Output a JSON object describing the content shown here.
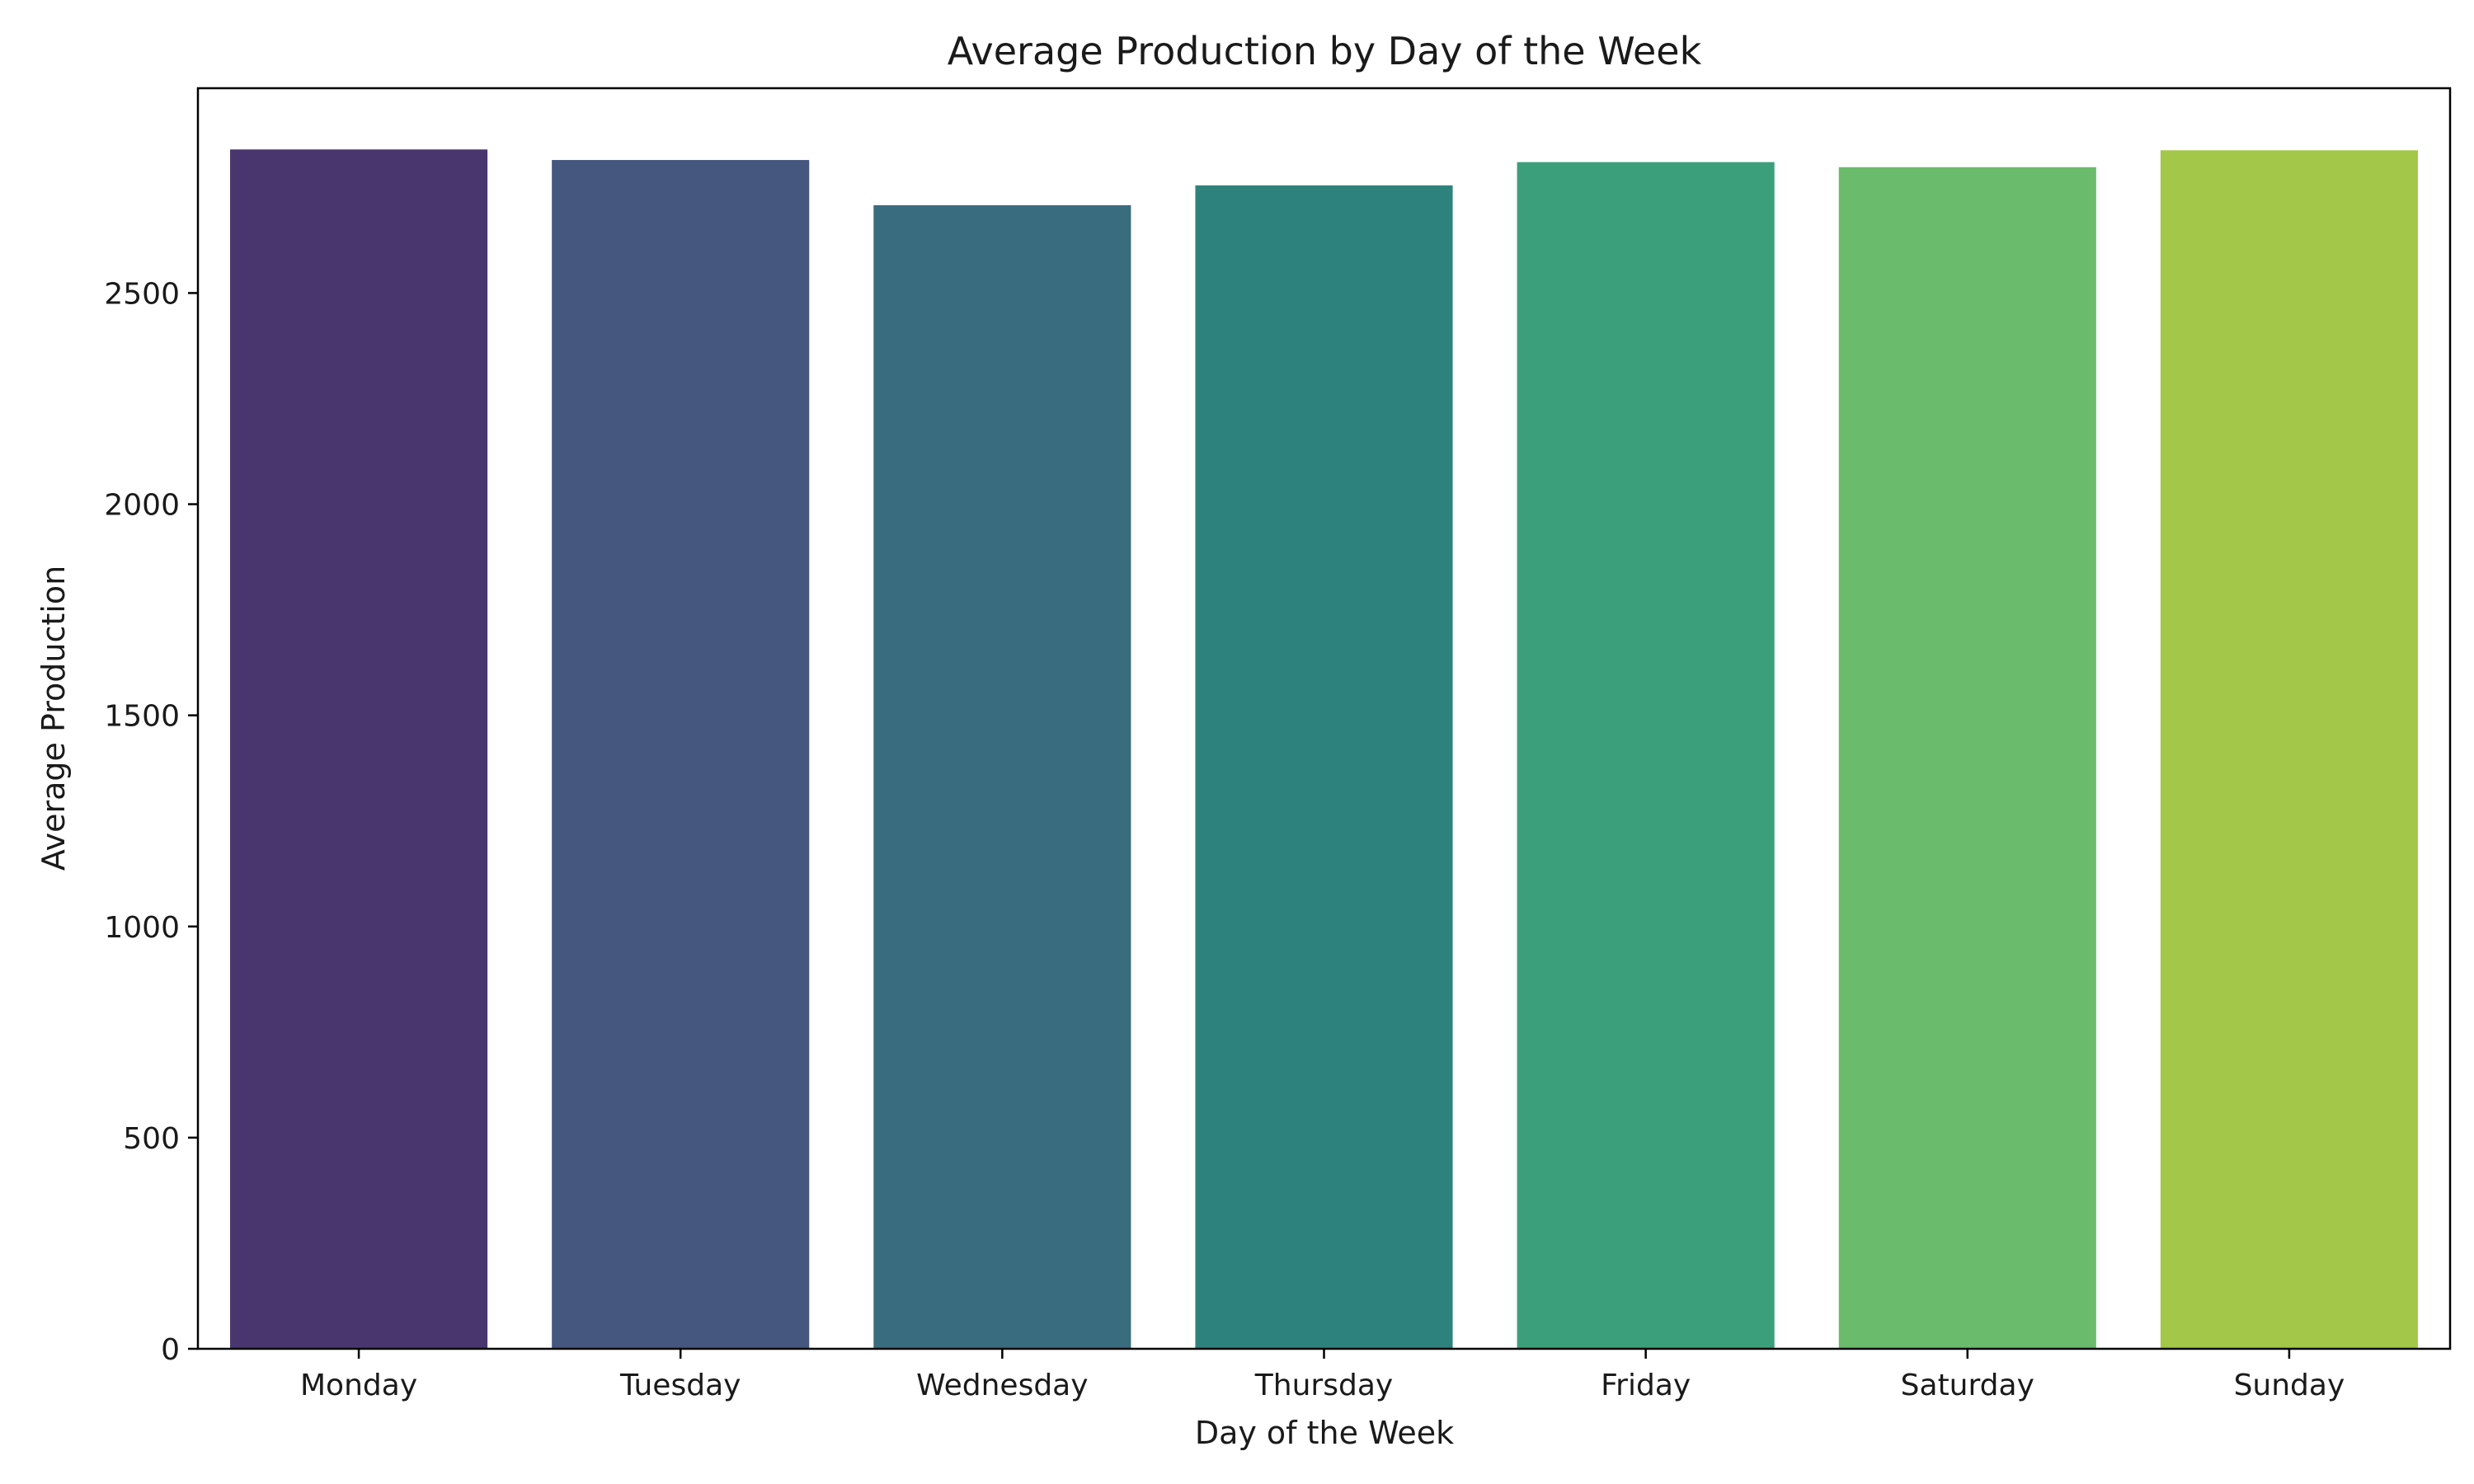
{
  "chart_data": {
    "type": "bar",
    "title": "Average Production by Day of the Week",
    "xlabel": "Day of the Week",
    "ylabel": "Average Production",
    "categories": [
      "Monday",
      "Tuesday",
      "Wednesday",
      "Thursday",
      "Friday",
      "Saturday",
      "Sunday"
    ],
    "values": [
      2840,
      2815,
      2708,
      2755,
      2810,
      2798,
      2838
    ],
    "colors": [
      "#4a366f",
      "#45577f",
      "#3a6c7f",
      "#2e827d",
      "#3c9f7b",
      "#6abb6b",
      "#a3c748"
    ],
    "ylim": [
      0,
      2985
    ],
    "yticks": [
      0,
      500,
      1000,
      1500,
      2000,
      2500
    ],
    "grid": false,
    "legend": "none"
  }
}
